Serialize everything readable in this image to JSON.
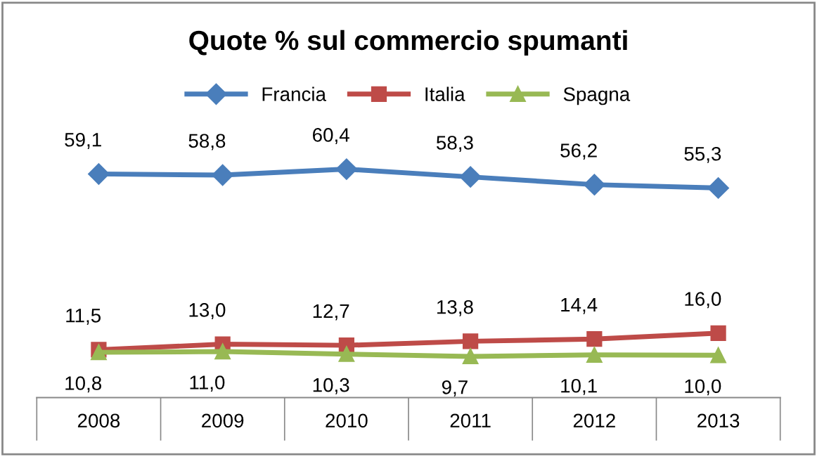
{
  "chart_data": {
    "type": "line",
    "title": "Quote % sul commercio spumanti",
    "categories": [
      "2008",
      "2009",
      "2010",
      "2011",
      "2012",
      "2013"
    ],
    "series": [
      {
        "name": "Francia",
        "color": "#4a7ebb",
        "marker": "diamond",
        "values": [
          59.1,
          58.8,
          60.4,
          58.3,
          56.2,
          55.3
        ],
        "value_labels": [
          "59,1",
          "58,8",
          "60,4",
          "58,3",
          "56,2",
          "55,3"
        ]
      },
      {
        "name": "Italia",
        "color": "#be4b48",
        "marker": "square",
        "values": [
          11.5,
          13.0,
          12.7,
          13.8,
          14.4,
          16.0
        ],
        "value_labels": [
          "11,5",
          "13,0",
          "12,7",
          "13,8",
          "14,4",
          "16,0"
        ]
      },
      {
        "name": "Spagna",
        "color": "#98b954",
        "marker": "triangle",
        "values": [
          10.8,
          11.0,
          10.3,
          9.7,
          10.1,
          10.0
        ],
        "value_labels": [
          "10,8",
          "11,0",
          "10,3",
          "9,7",
          "10,1",
          "10,0"
        ]
      }
    ],
    "tick_labels": "x",
    "legend": "top",
    "grid": false,
    "line_style": "solid"
  }
}
